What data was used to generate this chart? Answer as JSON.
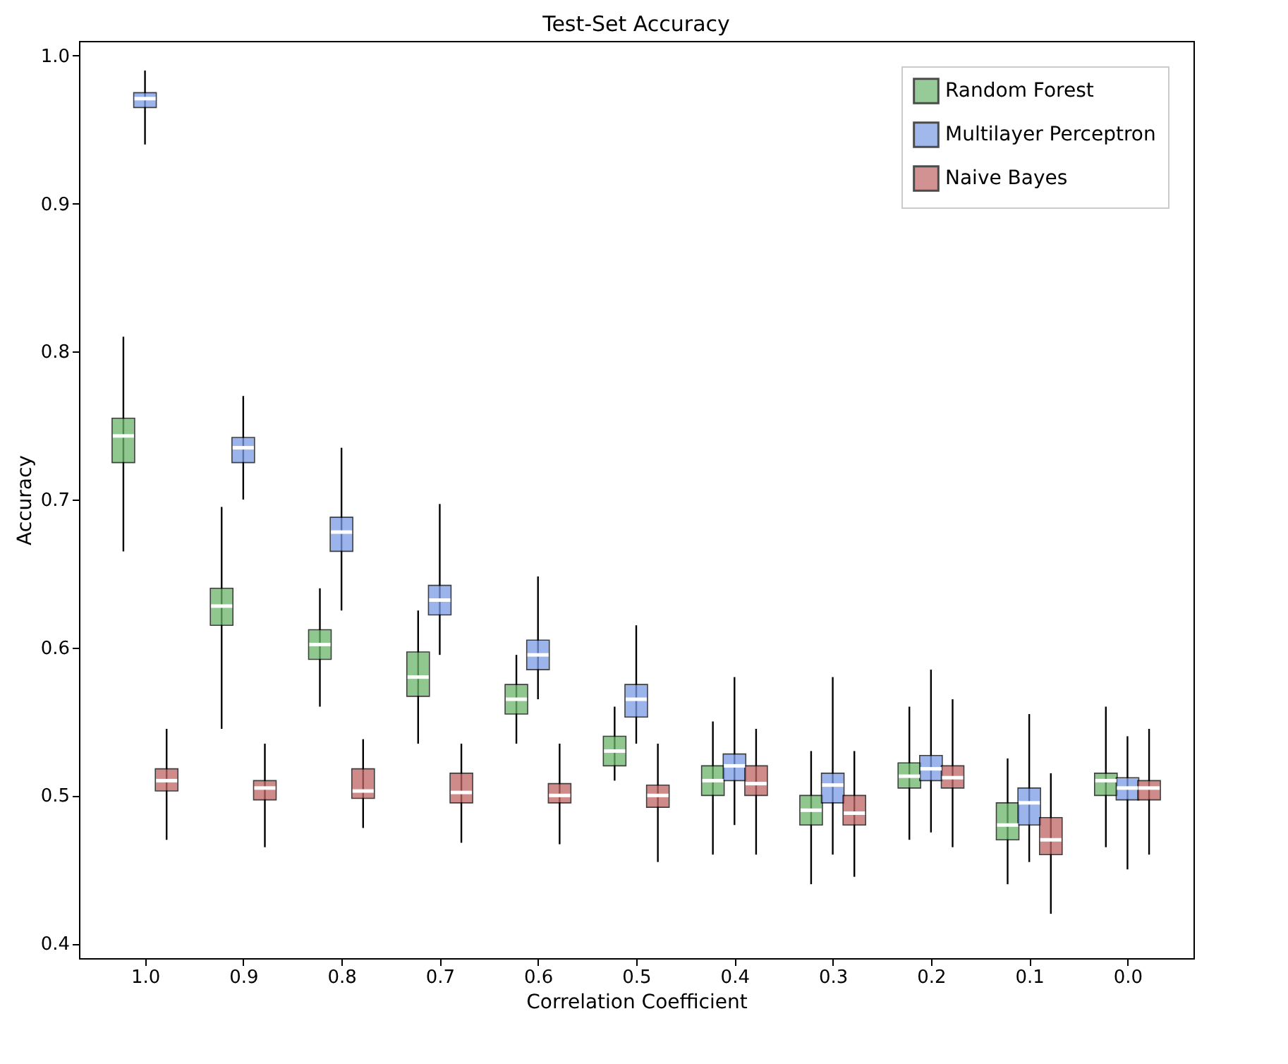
{
  "chart_data": {
    "type": "box",
    "title": "Test-Set Accuracy",
    "xlabel": "Correlation Coefficient",
    "ylabel": "Accuracy",
    "categories": [
      "1.0",
      "0.9",
      "0.8",
      "0.7",
      "0.6",
      "0.5",
      "0.4",
      "0.3",
      "0.2",
      "0.1",
      "0.0"
    ],
    "ylim": [
      0.39,
      1.01
    ],
    "yticks": [
      0.4,
      0.5,
      0.6,
      0.7,
      0.8,
      0.9,
      {
        "value": 1,
        "label": "1.0"
      }
    ],
    "grid": false,
    "legend": "top right",
    "series": [
      {
        "name": "Random Forest",
        "color": "#6ab56a",
        "boxes": [
          {
            "low": 0.665,
            "q1": 0.725,
            "median": 0.743,
            "q3": 0.755,
            "high": 0.81
          },
          {
            "low": 0.545,
            "q1": 0.615,
            "median": 0.628,
            "q3": 0.64,
            "high": 0.695
          },
          {
            "low": 0.56,
            "q1": 0.592,
            "median": 0.602,
            "q3": 0.612,
            "high": 0.64
          },
          {
            "low": 0.535,
            "q1": 0.567,
            "median": 0.58,
            "q3": 0.597,
            "high": 0.625
          },
          {
            "low": 0.535,
            "q1": 0.555,
            "median": 0.565,
            "q3": 0.575,
            "high": 0.595
          },
          {
            "low": 0.51,
            "q1": 0.52,
            "median": 0.53,
            "q3": 0.54,
            "high": 0.56
          },
          {
            "low": 0.46,
            "q1": 0.5,
            "median": 0.51,
            "q3": 0.52,
            "high": 0.55
          },
          {
            "low": 0.44,
            "q1": 0.48,
            "median": 0.49,
            "q3": 0.5,
            "high": 0.53
          },
          {
            "low": 0.47,
            "q1": 0.505,
            "median": 0.513,
            "q3": 0.522,
            "high": 0.56
          },
          {
            "low": 0.44,
            "q1": 0.47,
            "median": 0.48,
            "q3": 0.495,
            "high": 0.525
          },
          {
            "low": 0.465,
            "q1": 0.5,
            "median": 0.51,
            "q3": 0.515,
            "high": 0.56
          }
        ]
      },
      {
        "name": "Multilayer Perceptron",
        "color": "#7a9be6",
        "boxes": [
          {
            "low": 0.94,
            "q1": 0.965,
            "median": 0.971,
            "q3": 0.975,
            "high": 0.99
          },
          {
            "low": 0.7,
            "q1": 0.725,
            "median": 0.735,
            "q3": 0.742,
            "high": 0.77
          },
          {
            "low": 0.625,
            "q1": 0.665,
            "median": 0.678,
            "q3": 0.688,
            "high": 0.735
          },
          {
            "low": 0.595,
            "q1": 0.622,
            "median": 0.632,
            "q3": 0.642,
            "high": 0.697
          },
          {
            "low": 0.565,
            "q1": 0.585,
            "median": 0.595,
            "q3": 0.605,
            "high": 0.648
          },
          {
            "low": 0.535,
            "q1": 0.553,
            "median": 0.565,
            "q3": 0.575,
            "high": 0.615
          },
          {
            "low": 0.48,
            "q1": 0.51,
            "median": 0.52,
            "q3": 0.528,
            "high": 0.58
          },
          {
            "low": 0.46,
            "q1": 0.495,
            "median": 0.507,
            "q3": 0.515,
            "high": 0.58
          },
          {
            "low": 0.475,
            "q1": 0.51,
            "median": 0.518,
            "q3": 0.527,
            "high": 0.585
          },
          {
            "low": 0.455,
            "q1": 0.48,
            "median": 0.495,
            "q3": 0.505,
            "high": 0.555
          },
          {
            "low": 0.45,
            "q1": 0.497,
            "median": 0.505,
            "q3": 0.512,
            "high": 0.54
          }
        ]
      },
      {
        "name": "Naive Bayes",
        "color": "#c06464",
        "boxes": [
          {
            "low": 0.47,
            "q1": 0.503,
            "median": 0.51,
            "q3": 0.518,
            "high": 0.545
          },
          {
            "low": 0.465,
            "q1": 0.497,
            "median": 0.505,
            "q3": 0.51,
            "high": 0.535
          },
          {
            "low": 0.478,
            "q1": 0.498,
            "median": 0.503,
            "q3": 0.518,
            "high": 0.538
          },
          {
            "low": 0.468,
            "q1": 0.495,
            "median": 0.502,
            "q3": 0.515,
            "high": 0.535
          },
          {
            "low": 0.467,
            "q1": 0.495,
            "median": 0.5,
            "q3": 0.508,
            "high": 0.535
          },
          {
            "low": 0.455,
            "q1": 0.492,
            "median": 0.5,
            "q3": 0.507,
            "high": 0.535
          },
          {
            "low": 0.46,
            "q1": 0.5,
            "median": 0.508,
            "q3": 0.52,
            "high": 0.545
          },
          {
            "low": 0.445,
            "q1": 0.48,
            "median": 0.488,
            "q3": 0.5,
            "high": 0.53
          },
          {
            "low": 0.465,
            "q1": 0.505,
            "median": 0.512,
            "q3": 0.52,
            "high": 0.565
          },
          {
            "low": 0.42,
            "q1": 0.46,
            "median": 0.47,
            "q3": 0.485,
            "high": 0.515
          },
          {
            "low": 0.46,
            "q1": 0.497,
            "median": 0.505,
            "q3": 0.51,
            "high": 0.545
          }
        ]
      }
    ]
  }
}
